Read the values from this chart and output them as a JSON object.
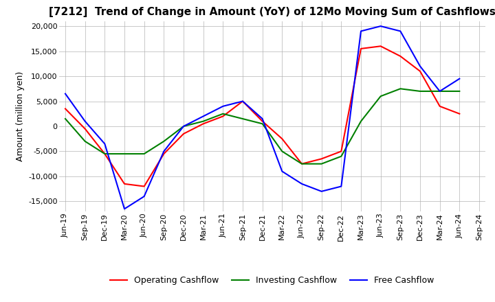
{
  "title": "[7212]  Trend of Change in Amount (YoY) of 12Mo Moving Sum of Cashflows",
  "ylabel": "Amount (million yen)",
  "ylim": [
    -17000,
    21000
  ],
  "yticks": [
    -15000,
    -10000,
    -5000,
    0,
    5000,
    10000,
    15000,
    20000
  ],
  "x_labels": [
    "Jun-19",
    "Sep-19",
    "Dec-19",
    "Mar-20",
    "Jun-20",
    "Sep-20",
    "Dec-20",
    "Mar-21",
    "Jun-21",
    "Sep-21",
    "Dec-21",
    "Mar-22",
    "Jun-22",
    "Sep-22",
    "Dec-22",
    "Mar-23",
    "Jun-23",
    "Sep-23",
    "Dec-23",
    "Mar-24",
    "Jun-24",
    "Sep-24"
  ],
  "operating": [
    3500,
    -500,
    -5500,
    -11500,
    -12000,
    -5500,
    -1500,
    500,
    2000,
    5000,
    1000,
    -2500,
    -7500,
    -6500,
    -5000,
    15500,
    16000,
    14000,
    11000,
    4000,
    2500,
    null
  ],
  "investing": [
    1500,
    -3000,
    -5500,
    -5500,
    -5500,
    -3000,
    0,
    1000,
    2500,
    1500,
    500,
    -5000,
    -7500,
    -7500,
    -6000,
    1000,
    6000,
    7500,
    7000,
    7000,
    7000,
    null
  ],
  "free": [
    6500,
    1000,
    -3500,
    -16500,
    -14000,
    -5000,
    0,
    2000,
    4000,
    5000,
    1500,
    -9000,
    -11500,
    -13000,
    -12000,
    19000,
    20000,
    19000,
    12000,
    7000,
    9500,
    null
  ],
  "operating_color": "#ff0000",
  "investing_color": "#008000",
  "free_color": "#0000ff",
  "background_color": "#ffffff",
  "grid_color": "#b0b0b0",
  "title_fontsize": 11,
  "label_fontsize": 9,
  "tick_fontsize": 8,
  "legend_fontsize": 9
}
